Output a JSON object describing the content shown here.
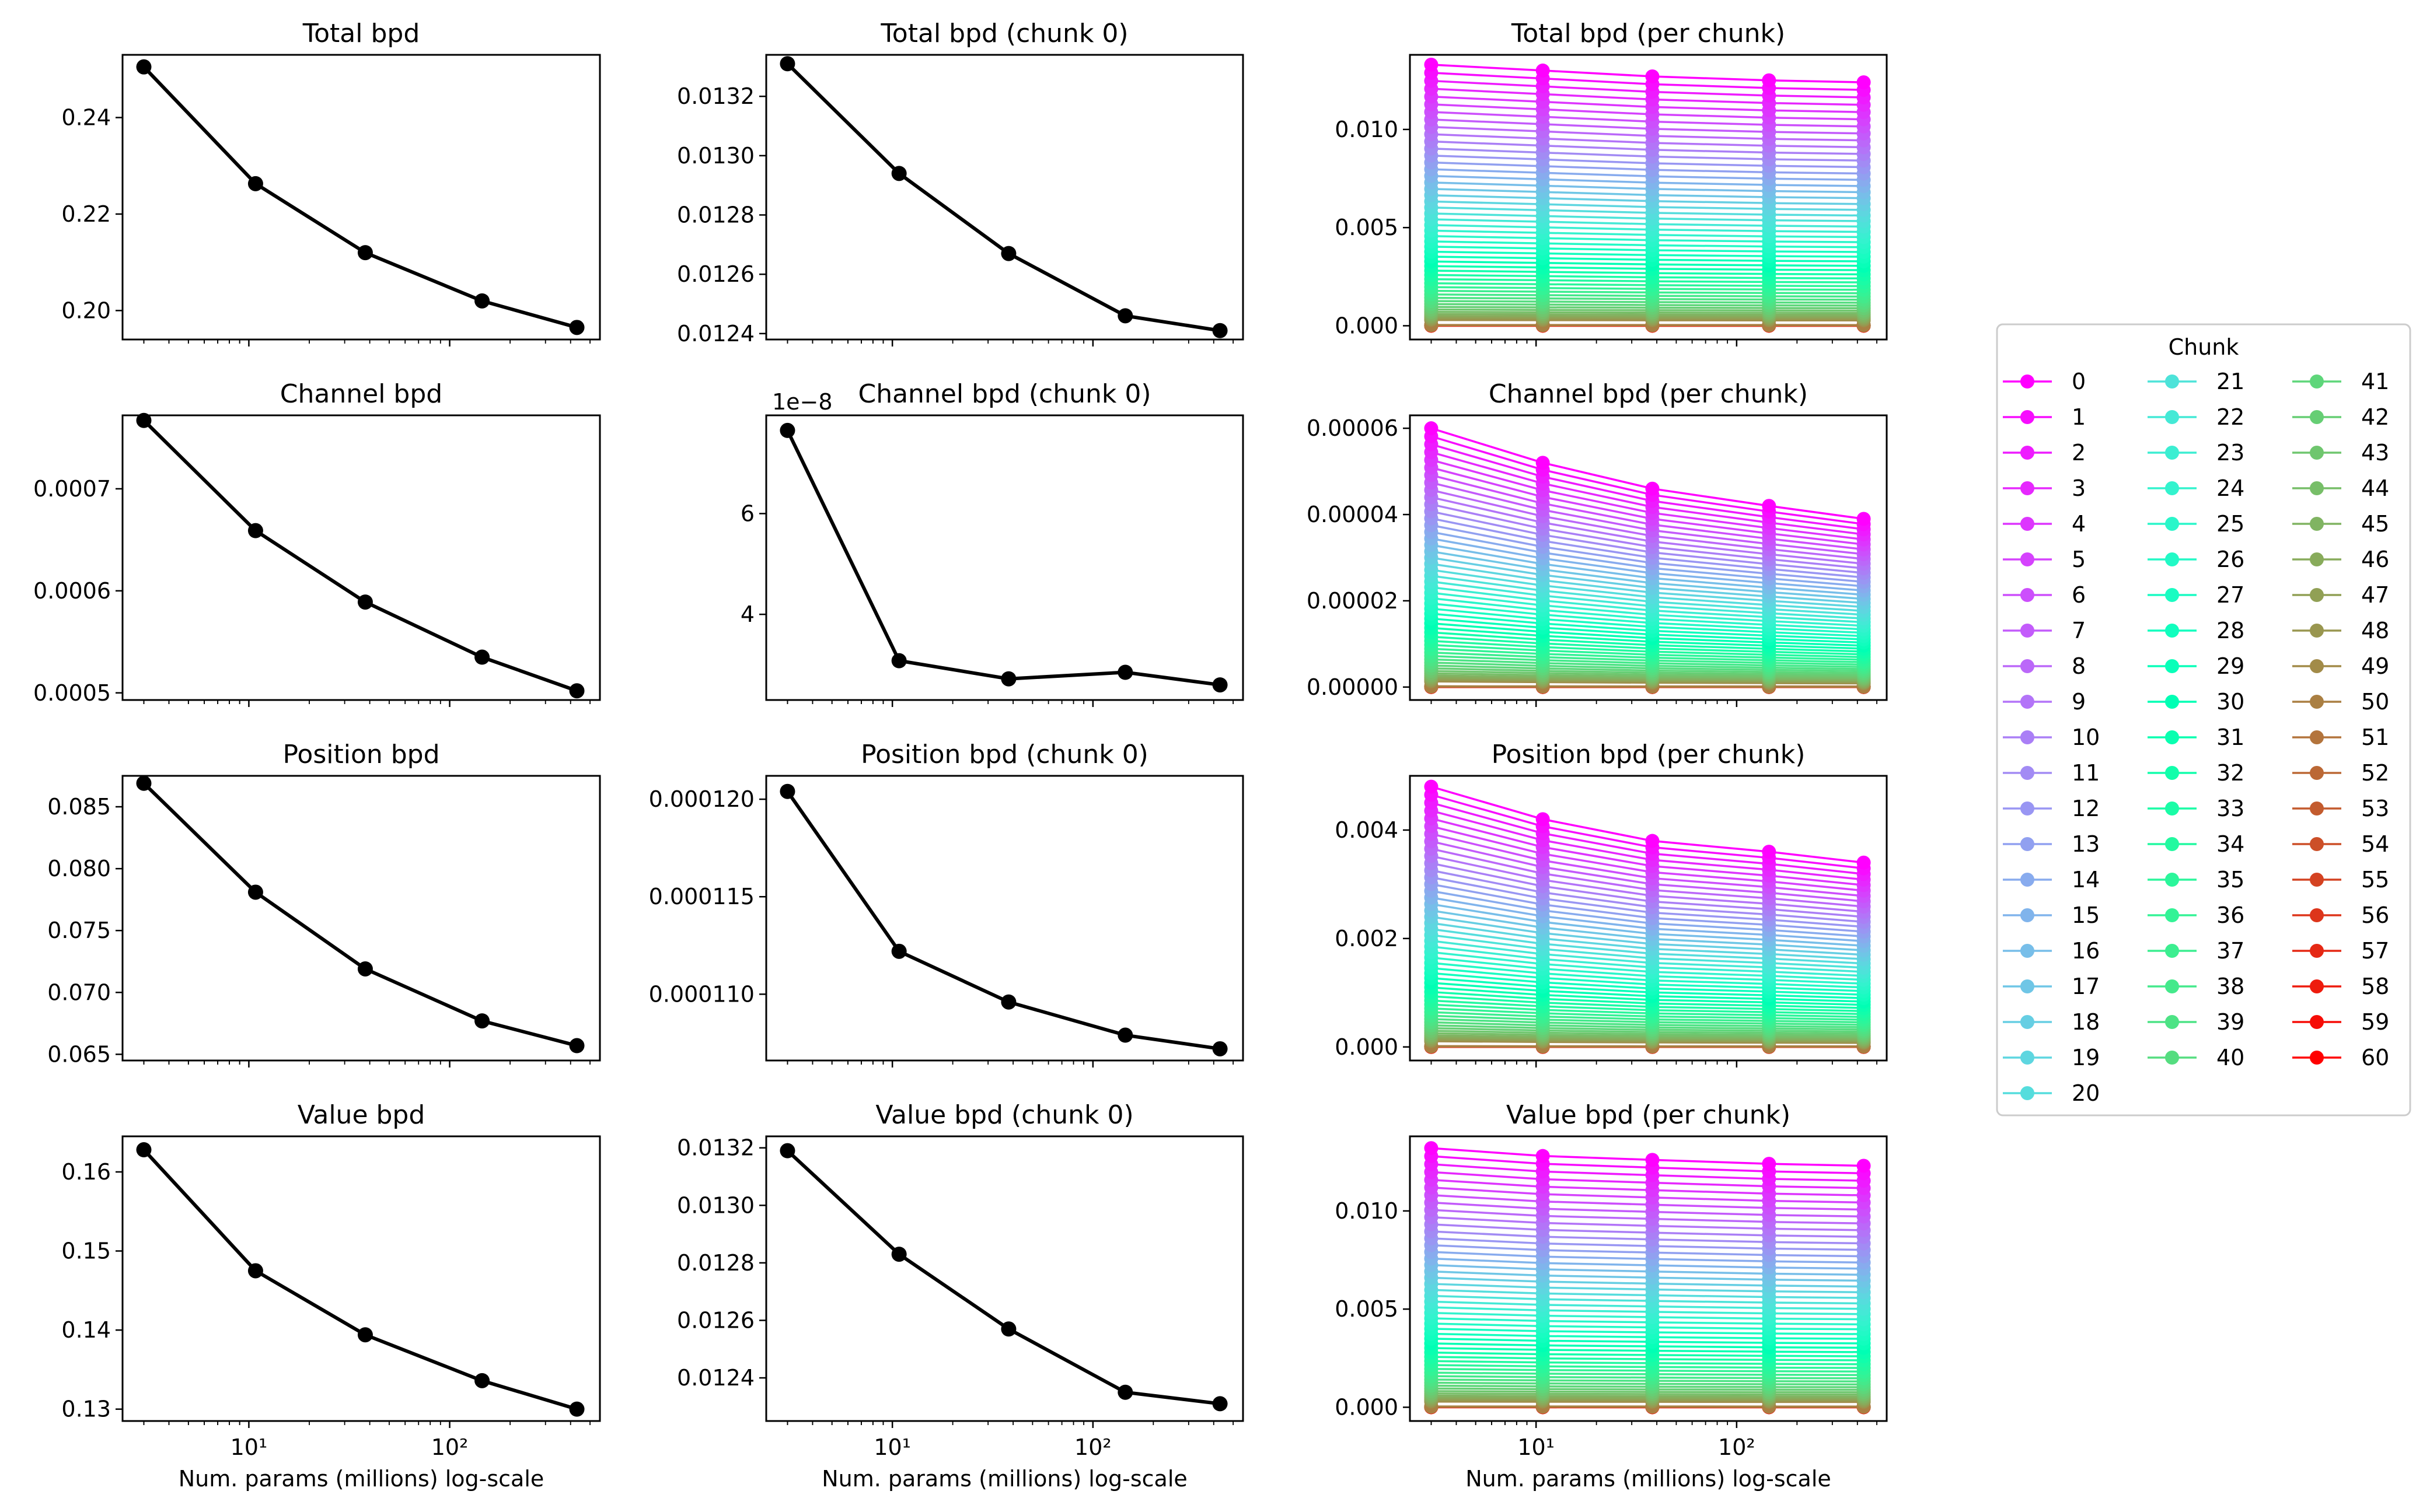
{
  "figure": {
    "xlabel": "Num. params (millions) log-scale",
    "legend_title": "Chunk",
    "x_params_millions": [
      3,
      10.8,
      38,
      145,
      430
    ]
  },
  "chart_data": [
    {
      "id": "p00",
      "type": "line",
      "title": "Total bpd",
      "xlabel": "",
      "ylim": [
        0.194,
        0.253
      ],
      "yticks": [
        0.2,
        0.22,
        0.24
      ],
      "ytick_labels": [
        "0.20",
        "0.22",
        "0.24"
      ],
      "x": [
        3,
        10.8,
        38,
        145,
        430
      ],
      "values": [
        0.2505,
        0.2263,
        0.212,
        0.202,
        0.1965
      ]
    },
    {
      "id": "p01",
      "type": "line",
      "title": "Total bpd (chunk 0)",
      "xlabel": "",
      "ylim": [
        0.01238,
        0.01334
      ],
      "yticks": [
        0.0124,
        0.0126,
        0.0128,
        0.013,
        0.0132
      ],
      "ytick_labels": [
        "0.0124",
        "0.0126",
        "0.0128",
        "0.0130",
        "0.0132"
      ],
      "x": [
        3,
        10.8,
        38,
        145,
        430
      ],
      "values": [
        0.01331,
        0.01294,
        0.01267,
        0.01246,
        0.01241
      ]
    },
    {
      "id": "p02",
      "type": "line",
      "title": "Total bpd (per chunk)",
      "xlabel": "",
      "ylim": [
        -0.0007,
        0.0138
      ],
      "yticks": [
        0,
        0.005,
        0.01
      ],
      "ytick_labels": [
        "0.000",
        "0.005",
        "0.010"
      ],
      "series_top": [
        0.0133,
        0.013,
        0.0127,
        0.0125,
        0.0124
      ],
      "series_count": 61
    },
    {
      "id": "p10",
      "type": "line",
      "title": "Channel bpd",
      "xlabel": "",
      "ylim": [
        0.000493,
        0.000772
      ],
      "yticks": [
        0.0005,
        0.0006,
        0.0007
      ],
      "ytick_labels": [
        "0.0005",
        "0.0006",
        "0.0007"
      ],
      "x": [
        3,
        10.8,
        38,
        145,
        430
      ],
      "values": [
        0.000767,
        0.000659,
        0.000589,
        0.000535,
        0.000502
      ]
    },
    {
      "id": "p11",
      "type": "line",
      "title": "Channel bpd (chunk 0)",
      "xlabel": "",
      "offset_label": "1e−8",
      "ylim": [
        2.3,
        7.95
      ],
      "yticks": [
        4,
        6
      ],
      "ytick_labels": [
        "4",
        "6"
      ],
      "x": [
        3,
        10.8,
        38,
        145,
        430
      ],
      "values": [
        7.65,
        3.08,
        2.72,
        2.85,
        2.6
      ]
    },
    {
      "id": "p12",
      "type": "line",
      "title": "Channel bpd (per chunk)",
      "xlabel": "",
      "ylim": [
        -3e-06,
        6.3e-05
      ],
      "yticks": [
        0,
        2e-05,
        4e-05,
        6e-05
      ],
      "ytick_labels": [
        "0.00000",
        "0.00002",
        "0.00004",
        "0.00006"
      ],
      "series_top": [
        6e-05,
        5.2e-05,
        4.6e-05,
        4.2e-05,
        3.9e-05
      ],
      "series_count": 61
    },
    {
      "id": "p20",
      "type": "line",
      "title": "Position bpd",
      "xlabel": "",
      "ylim": [
        0.0645,
        0.0875
      ],
      "yticks": [
        0.065,
        0.07,
        0.075,
        0.08,
        0.085
      ],
      "ytick_labels": [
        "0.065",
        "0.070",
        "0.075",
        "0.080",
        "0.085"
      ],
      "x": [
        3,
        10.8,
        38,
        145,
        430
      ],
      "values": [
        0.0869,
        0.0781,
        0.0719,
        0.0677,
        0.0657
      ]
    },
    {
      "id": "p21",
      "type": "line",
      "title": "Position bpd (chunk 0)",
      "xlabel": "",
      "ylim": [
        0.0001066,
        0.0001212
      ],
      "yticks": [
        0.00011,
        0.000115,
        0.00012
      ],
      "ytick_labels": [
        "0.000110",
        "0.000115",
        "0.000120"
      ],
      "x": [
        3,
        10.8,
        38,
        145,
        430
      ],
      "values": [
        0.0001204,
        0.0001122,
        0.0001096,
        0.0001079,
        0.0001072
      ]
    },
    {
      "id": "p22",
      "type": "line",
      "title": "Position bpd (per chunk)",
      "xlabel": "",
      "ylim": [
        -0.00025,
        0.005
      ],
      "yticks": [
        0,
        0.002,
        0.004
      ],
      "ytick_labels": [
        "0.000",
        "0.002",
        "0.004"
      ],
      "series_top": [
        0.0048,
        0.0042,
        0.0038,
        0.0036,
        0.0034
      ],
      "series_count": 61
    },
    {
      "id": "p30",
      "type": "line",
      "title": "Value bpd",
      "xlabel": "Num. params (millions) log-scale",
      "ylim": [
        0.1285,
        0.1645
      ],
      "yticks": [
        0.13,
        0.14,
        0.15,
        0.16
      ],
      "ytick_labels": [
        "0.13",
        "0.14",
        "0.15",
        "0.16"
      ],
      "x": [
        3,
        10.8,
        38,
        145,
        430
      ],
      "values": [
        0.1628,
        0.1475,
        0.1394,
        0.1336,
        0.13
      ]
    },
    {
      "id": "p31",
      "type": "line",
      "title": "Value bpd (chunk 0)",
      "xlabel": "Num. params (millions) log-scale",
      "ylim": [
        0.01225,
        0.01324
      ],
      "yticks": [
        0.0124,
        0.0126,
        0.0128,
        0.013,
        0.0132
      ],
      "ytick_labels": [
        "0.0124",
        "0.0126",
        "0.0128",
        "0.0130",
        "0.0132"
      ],
      "x": [
        3,
        10.8,
        38,
        145,
        430
      ],
      "values": [
        0.01319,
        0.01283,
        0.01257,
        0.01235,
        0.01231
      ]
    },
    {
      "id": "p32",
      "type": "line",
      "title": "Value bpd (per chunk)",
      "xlabel": "Num. params (millions) log-scale",
      "ylim": [
        -0.0007,
        0.0138
      ],
      "yticks": [
        0,
        0.005,
        0.01
      ],
      "ytick_labels": [
        "0.000",
        "0.005",
        "0.010"
      ],
      "series_top": [
        0.0132,
        0.0128,
        0.0126,
        0.0124,
        0.0123
      ],
      "series_count": 61
    }
  ],
  "legend": {
    "title": "Chunk",
    "entries": [
      "0",
      "1",
      "2",
      "3",
      "4",
      "5",
      "6",
      "7",
      "8",
      "9",
      "10",
      "11",
      "12",
      "13",
      "14",
      "15",
      "16",
      "17",
      "18",
      "19",
      "20",
      "21",
      "22",
      "23",
      "24",
      "25",
      "26",
      "27",
      "28",
      "29",
      "30",
      "31",
      "32",
      "33",
      "34",
      "35",
      "36",
      "37",
      "38",
      "39",
      "40",
      "41",
      "42",
      "43",
      "44",
      "45",
      "46",
      "47",
      "48",
      "49",
      "50",
      "51",
      "52",
      "53",
      "54",
      "55",
      "56",
      "57",
      "58",
      "59",
      "60"
    ]
  },
  "x_axis_ticks": {
    "major": [
      "10¹",
      "10²"
    ],
    "major_values": [
      10,
      100
    ]
  }
}
